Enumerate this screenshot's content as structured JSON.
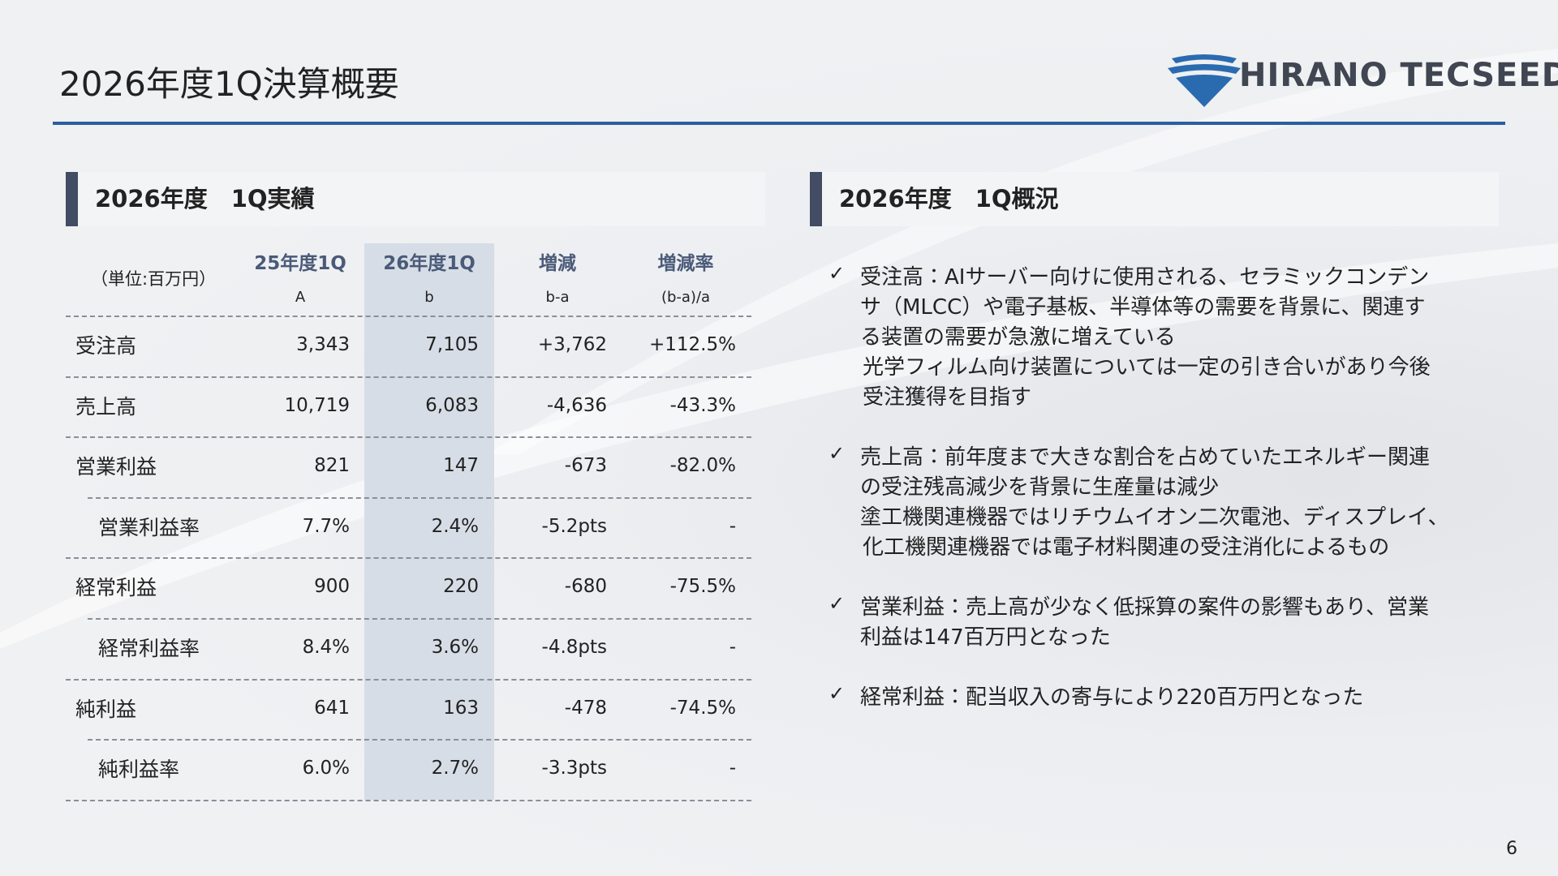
{
  "header": {
    "title": "2026年度1Q決算概要",
    "logo": "HIRANO TECSEED"
  },
  "left": {
    "heading": "2026年度　1Q実績",
    "table": {
      "unit": "（単位:百万円）",
      "columns": [
        {
          "label": "25年度1Q",
          "sub": "A"
        },
        {
          "label": "26年度1Q",
          "sub": "b"
        },
        {
          "label": "増減",
          "sub": "b-a"
        },
        {
          "label": "増減率",
          "sub": "(b-a)/a"
        }
      ],
      "rows": [
        {
          "cells": [
            "受注高",
            "3,343",
            "7,105",
            "+3,762",
            "+112.5%"
          ]
        },
        {
          "cells": [
            "売上高",
            "10,719",
            "6,083",
            "-4,636",
            "-43.3%"
          ]
        },
        {
          "cells": [
            "営業利益",
            "821",
            "147",
            "-673",
            "-82.0%"
          ],
          "ratio": [
            "営業利益率",
            "7.7%",
            "2.4%",
            "-5.2pts",
            "-"
          ]
        },
        {
          "cells": [
            "経常利益",
            "900",
            "220",
            "-680",
            "-75.5%"
          ],
          "ratio": [
            "経常利益率",
            "8.4%",
            "3.6%",
            "-4.8pts",
            "-"
          ]
        },
        {
          "cells": [
            "純利益",
            "641",
            "163",
            "-478",
            "-74.5%"
          ],
          "ratio": [
            "純利益率",
            "6.0%",
            "2.7%",
            "-3.3pts",
            "-"
          ]
        }
      ]
    }
  },
  "right": {
    "heading": "2026年度　1Q概況",
    "items": [
      [
        "受注高：AIサーバー向けに使用される、セラミックコンデン",
        "サ（MLCC）や電子基板、半導体等の需要を背景に、関連す",
        "る装置の需要が急激に増えている",
        "光学フィルム向け装置については一定の引き合いがあり今後",
        "受注獲得を目指す"
      ],
      [
        "売上高：前年度まで大きな割合を占めていたエネルギー関連",
        "の受注残高減少を背景に生産量は減少",
        "塗工機関連機器ではリチウムイオン二次電池、ディスプレイ、",
        "化工機関連機器では電子材料関連の受注消化によるもの"
      ],
      [
        "営業利益：売上高が少なく低採算の案件の影響もあり、営業",
        "利益は147百万円となった"
      ],
      [
        "経常利益：配当収入の寄与により220百万円となった"
      ]
    ]
  },
  "page_number": "6"
}
